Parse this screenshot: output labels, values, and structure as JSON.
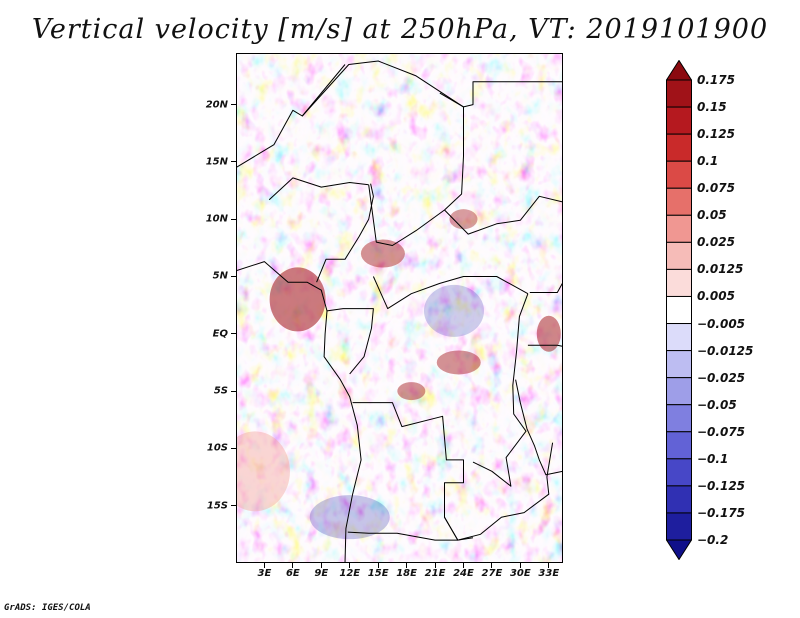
{
  "title": "Vertical velocity [m/s] at 250hPa, VT: 2019101900",
  "map": {
    "variable": "Vertical velocity",
    "units": "m/s",
    "level": "250hPa",
    "valid_time": "2019101900",
    "lat_labels": [
      "20N",
      "15N",
      "10N",
      "5N",
      "EQ",
      "5S",
      "10S",
      "15S"
    ],
    "lat_values": [
      20,
      15,
      10,
      5,
      0,
      -5,
      -10,
      -15
    ],
    "lon_labels": [
      "3E",
      "6E",
      "9E",
      "12E",
      "15E",
      "18E",
      "21E",
      "24E",
      "27E",
      "30E",
      "33E"
    ],
    "lon_values": [
      3,
      6,
      9,
      12,
      15,
      18,
      21,
      24,
      27,
      30,
      33
    ],
    "lat_range": [
      -20,
      24.5
    ],
    "lon_range": [
      0,
      34.5
    ],
    "colors": {
      "positive_strong": "#a00f14",
      "positive_weak": "#f4a6a0",
      "negative_weak": "#b3b3f2",
      "negative_strong": "#1e1ea8",
      "border": "#000000"
    }
  },
  "colorbar": {
    "labels": [
      "0.175",
      "0.15",
      "0.125",
      "0.1",
      "0.075",
      "0.05",
      "0.025",
      "0.0125",
      "0.005",
      "−0.005",
      "−0.0125",
      "−0.025",
      "−0.05",
      "−0.075",
      "−0.1",
      "−0.125",
      "−0.175",
      "−0.2"
    ],
    "colors": [
      "#8b0a10",
      "#a01218",
      "#b5191f",
      "#c92a2a",
      "#db4a46",
      "#e6706a",
      "#f09792",
      "#f6bcb8",
      "#fbdcda",
      "#ffffff",
      "#dcdcfa",
      "#bdbdf2",
      "#9e9ee8",
      "#7f7fe0",
      "#6262d6",
      "#4747c7",
      "#3030b3",
      "#1e1e9e",
      "#10108a"
    ]
  },
  "credit": "GrADS: IGES/COLA"
}
